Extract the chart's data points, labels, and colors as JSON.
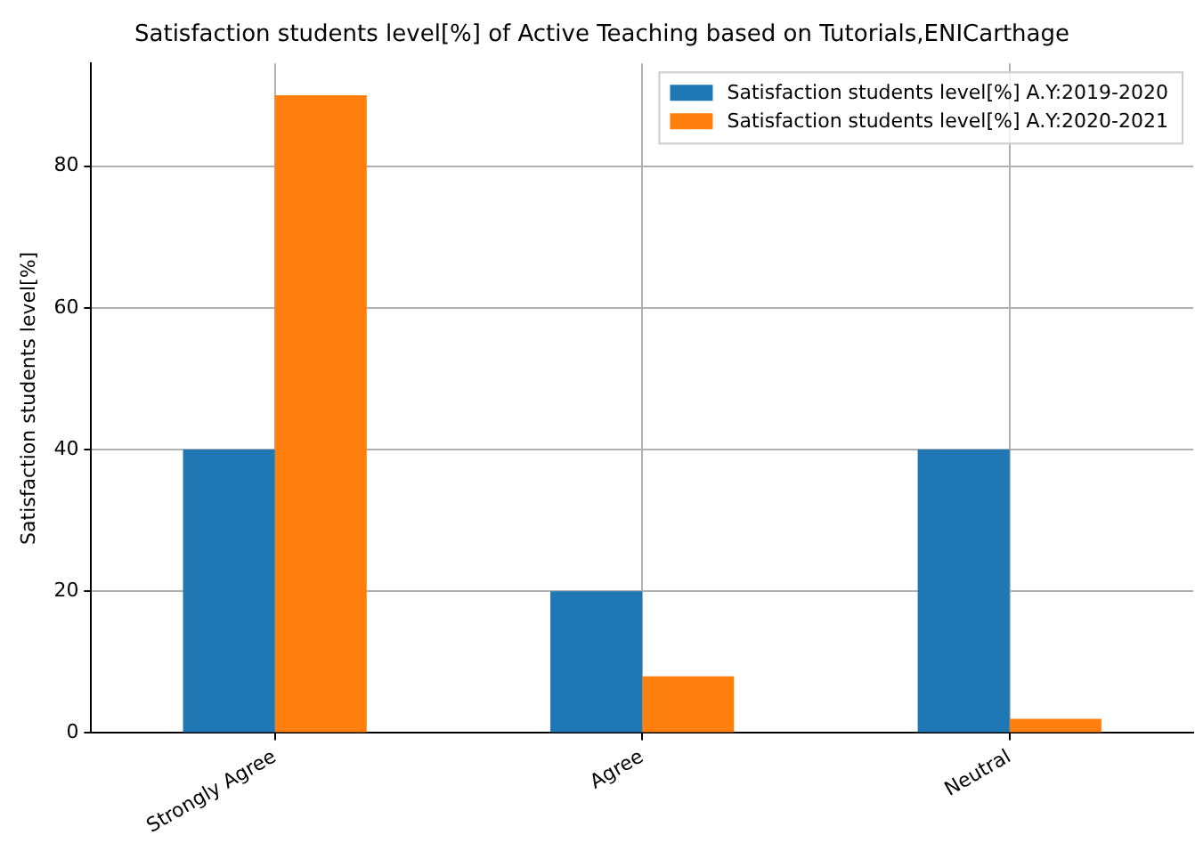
{
  "chart_data": {
    "type": "bar",
    "title": "Satisfaction students level[%] of Active Teaching based on Tutorials,ENICarthage",
    "ylabel": "Satisfaction students level[%]",
    "categories": [
      "Strongly Agree",
      "Agree",
      "Neutral"
    ],
    "series": [
      {
        "name": "Satisfaction students level[%] A.Y:2019-2020",
        "color": "#1f77b4",
        "values": [
          40,
          20,
          40
        ]
      },
      {
        "name": "Satisfaction students level[%] A.Y:2020-2021",
        "color": "#ff7f0e",
        "values": [
          90,
          8,
          2
        ]
      }
    ],
    "ylim": [
      0,
      94.5
    ],
    "yticks": [
      0,
      20,
      40,
      60,
      80
    ],
    "grid": true,
    "legend": "top right"
  }
}
